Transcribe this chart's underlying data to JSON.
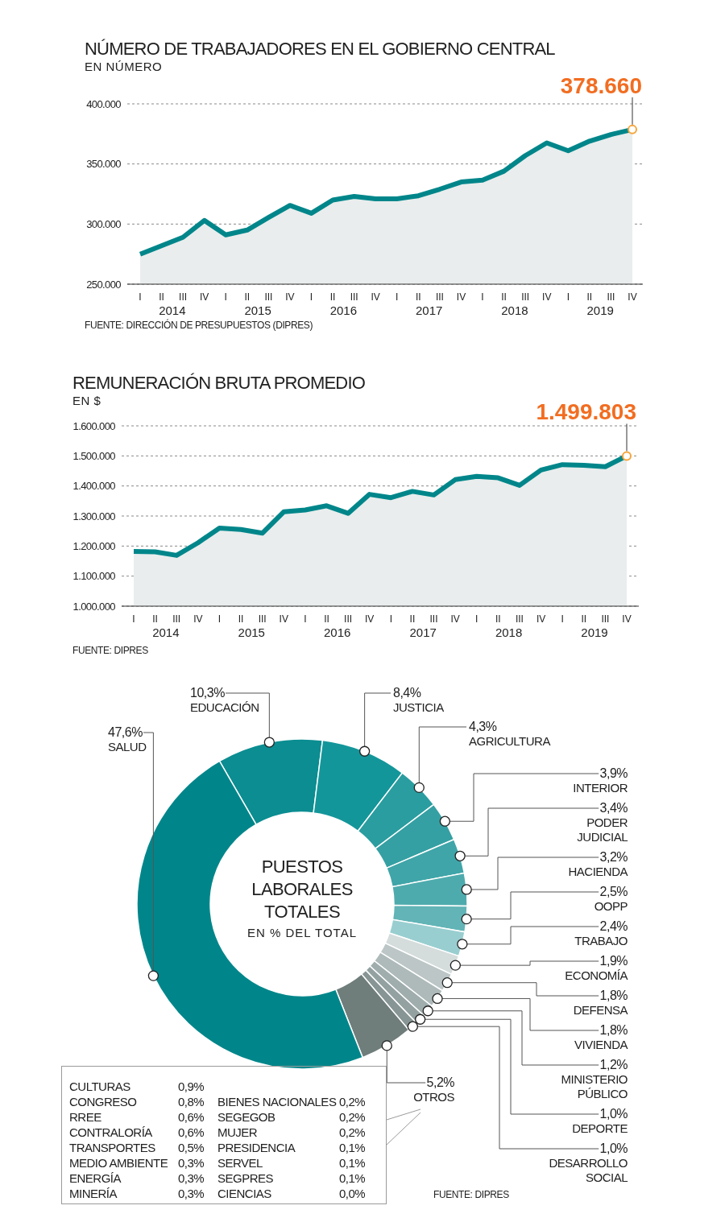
{
  "chart_data": [
    {
      "type": "area",
      "title": "NÚMERO DE TRABAJADORES EN EL GOBIERNO CENTRAL",
      "subtitle": "EN NÚMERO",
      "categories": [
        "I",
        "II",
        "III",
        "IV",
        "I",
        "II",
        "III",
        "IV",
        "I",
        "II",
        "III",
        "IV",
        "I",
        "II",
        "III",
        "IV",
        "I",
        "II",
        "III",
        "IV",
        "I",
        "II",
        "III",
        "IV"
      ],
      "series": [
        {
          "color": "#00868a",
          "values": [
            275000,
            282000,
            289000,
            303000,
            291000,
            295000,
            305500,
            315500,
            309000,
            320000,
            323000,
            321000,
            321000,
            323500,
            329000,
            335000,
            336500,
            344000,
            357000,
            367500,
            361000,
            369000,
            374500,
            378660
          ],
          "value_labels": [
            null,
            null,
            null,
            null,
            null,
            null,
            null,
            null,
            null,
            null,
            null,
            null,
            null,
            null,
            null,
            null,
            null,
            null,
            null,
            null,
            null,
            null,
            null,
            "378.660"
          ]
        }
      ],
      "ylim": [
        250000,
        400000
      ],
      "yticks": [
        {
          "value": 250000,
          "label": "250.000"
        },
        {
          "value": 300000,
          "label": "300.000"
        },
        {
          "value": 350000,
          "label": "350.000"
        },
        {
          "value": 400000,
          "label": "400.000"
        }
      ],
      "grid": "y",
      "annotations": [
        "2014",
        "2015",
        "2016",
        "2017",
        "2018",
        "2019",
        "FUENTE: DIRECCIÓN DE PRESUPUESTOS (DIPRES)"
      ]
    },
    {
      "type": "area",
      "title": "REMUNERACIÓN BRUTA PROMEDIO",
      "subtitle": "EN $",
      "categories": [
        "I",
        "II",
        "III",
        "IV",
        "I",
        "II",
        "III",
        "IV",
        "I",
        "II",
        "III",
        "IV",
        "I",
        "II",
        "III",
        "IV",
        "I",
        "II",
        "III",
        "IV",
        "I",
        "II",
        "III",
        "IV"
      ],
      "series": [
        {
          "color": "#00868a",
          "values": [
            1182000,
            1181000,
            1169000,
            1211000,
            1260000,
            1255000,
            1243000,
            1314000,
            1320000,
            1334000,
            1309000,
            1372000,
            1361000,
            1382000,
            1370000,
            1421000,
            1432000,
            1427000,
            1402000,
            1453000,
            1471000,
            1469000,
            1464000,
            1499803
          ],
          "value_labels": [
            null,
            null,
            null,
            null,
            null,
            null,
            null,
            null,
            null,
            null,
            null,
            null,
            null,
            null,
            null,
            null,
            null,
            null,
            null,
            null,
            null,
            null,
            null,
            "1.499.803"
          ]
        }
      ],
      "ylim": [
        1000000,
        1600000
      ],
      "yticks": [
        {
          "value": 1000000,
          "label": "1.000.000"
        },
        {
          "value": 1100000,
          "label": "1.100.000"
        },
        {
          "value": 1200000,
          "label": "1.200.000"
        },
        {
          "value": 1300000,
          "label": "1.300.000"
        },
        {
          "value": 1400000,
          "label": "1.400.000"
        },
        {
          "value": 1500000,
          "label": "1.500.000"
        },
        {
          "value": 1600000,
          "label": "1.600.000"
        }
      ],
      "grid": "y",
      "annotations": [
        "2014",
        "2015",
        "2016",
        "2017",
        "2018",
        "2019",
        "FUENTE: DIPRES"
      ]
    },
    {
      "type": "donut",
      "title": "PUESTOS LABORALES TOTALES",
      "subtitle": "EN % DEL TOTAL",
      "categories": [
        "EDUCACIÓN",
        "JUSTICIA",
        "AGRICULTURA",
        "INTERIOR",
        "PODER JUDICIAL",
        "HACIENDA",
        "OOPP",
        "TRABAJO",
        "ECONOMÍA",
        "DEFENSA",
        "VIVIENDA",
        "MINISTERIO PÚBLICO",
        "DEPORTE",
        "DESARROLLO SOCIAL",
        "OTROS",
        "SALUD"
      ],
      "values": [
        10.3,
        8.4,
        4.3,
        3.9,
        3.4,
        3.2,
        2.5,
        2.4,
        1.9,
        1.8,
        1.8,
        1.2,
        1.0,
        1.0,
        5.2,
        47.6
      ],
      "value_labels": [
        "10,3%",
        "8,4%",
        "4,3%",
        "3,9%",
        "3,4%",
        "3,2%",
        "2,5%",
        "2,4%",
        "1,9%",
        "1,8%",
        "1,8%",
        "1,2%",
        "1,0%",
        "1,0%",
        "5,2%",
        "47,6%"
      ],
      "colors": [
        "#0b8d91",
        "#13969a",
        "#2a9da0",
        "#35a0a3",
        "#3fa5a8",
        "#4eabad",
        "#62b4b6",
        "#99ced0",
        "#d4dcdc",
        "#bcc6c6",
        "#aebaba",
        "#a0adad",
        "#93a1a1",
        "#879594",
        "#6f7d7b",
        "#00868a"
      ],
      "annotations": [
        "FUENTE: DIPRES"
      ]
    },
    {
      "type": "other",
      "categories": [
        "CULTURAS",
        "CONGRESO",
        "RREE",
        "CONTRALORÍA",
        "TRANSPORTES",
        "MEDIO AMBIENTE",
        "ENERGÍA",
        "MINERÍA",
        "BIENES NACIONALES",
        "SEGEGOB",
        "MUJER",
        "PRESIDENCIA",
        "SERVEL",
        "SEGPRES",
        "CIENCIAS"
      ],
      "value_labels": [
        "0,9%",
        "0,8%",
        "0,6%",
        "0,6%",
        "0,5%",
        "0,3%",
        "0,3%",
        "0,3%",
        "0,2%",
        "0,2%",
        "0,2%",
        "0,1%",
        "0,1%",
        "0,1%",
        "0,0%"
      ]
    }
  ]
}
